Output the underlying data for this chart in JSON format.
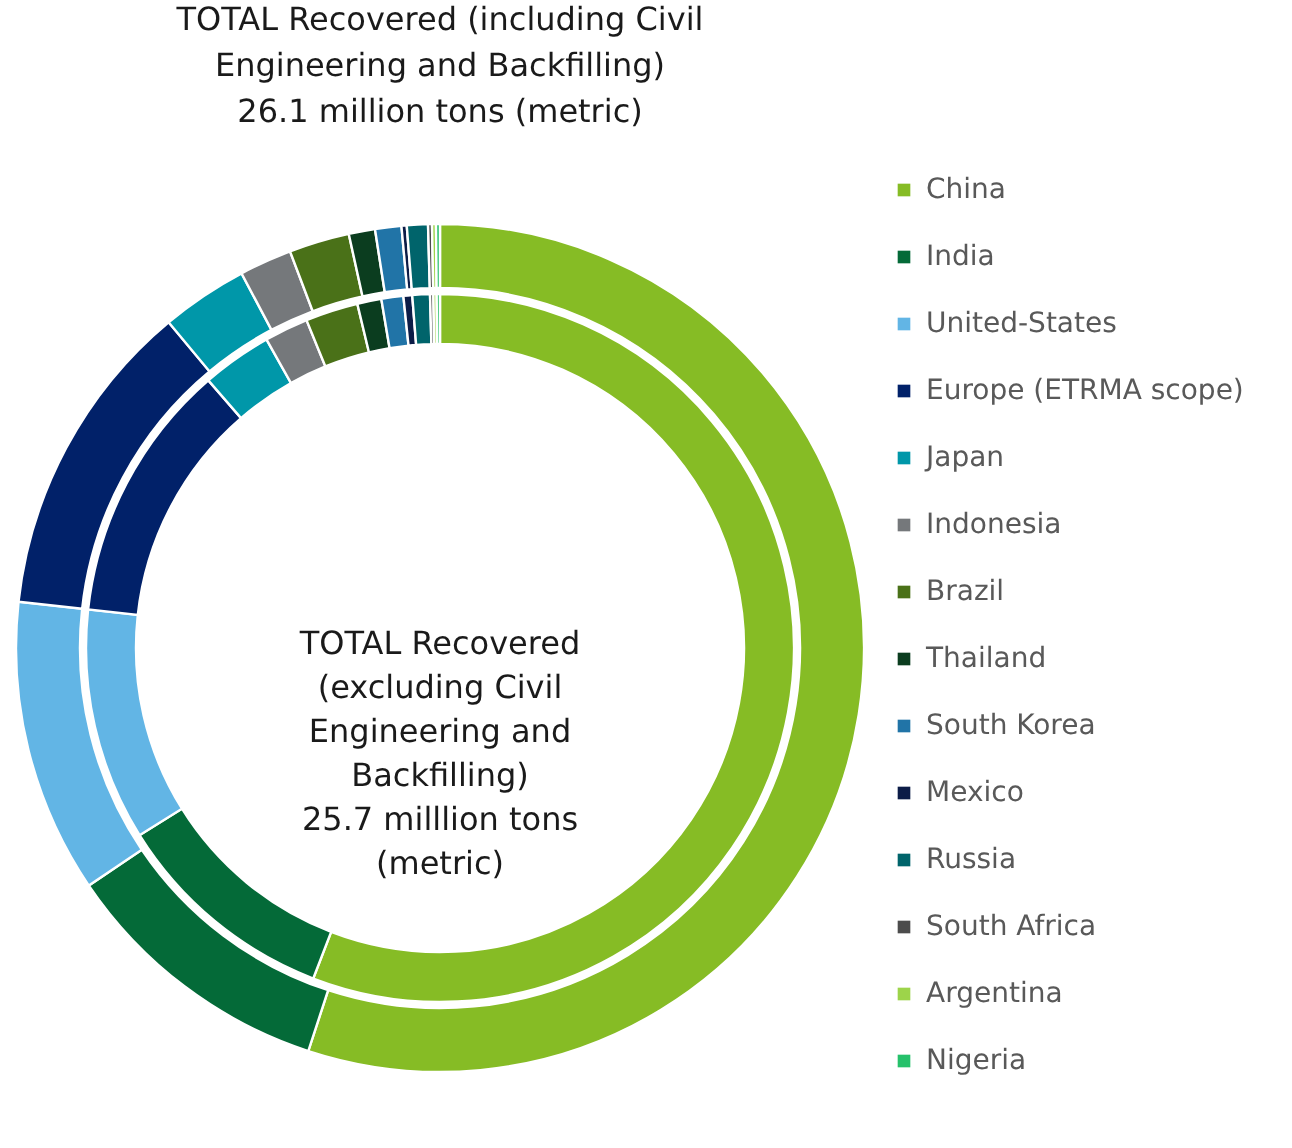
{
  "chart_data": {
    "type": "donut",
    "title": "TOTAL Recovered (including Civil Engineering and Backfilling) 26.1 million tons (metric)",
    "categories": [
      "China",
      "India",
      "United-States",
      "Europe (ETRMA scope)",
      "Japan",
      "Indonesia",
      "Brazil",
      "Thailand",
      "South Korea",
      "Mexico",
      "Russia",
      "South Africa",
      "Argentina",
      "Nigeria"
    ],
    "colors": [
      "#86bc25",
      "#046a38",
      "#62b5e5",
      "#012169",
      "#0097a9",
      "#75787b",
      "#4a7118",
      "#0b3d1f",
      "#2174a7",
      "#0c1c47",
      "#00646b",
      "#4c4c4c",
      "#9dd44a",
      "#26c16b"
    ],
    "series": [
      {
        "values": [
          55.0,
          10.5,
          11.2,
          12.2,
          3.3,
          2.0,
          2.3,
          1.0,
          1.0,
          0.2,
          0.8,
          0.15,
          0.15,
          0.15
        ]
      },
      {
        "values": [
          55.8,
          10.3,
          10.6,
          11.9,
          3.2,
          2.0,
          2.4,
          1.1,
          1.0,
          0.4,
          0.8,
          0.15,
          0.15,
          0.15
        ]
      }
    ],
    "annotations": [
      "TOTAL Recovered (excluding Civil Engineering and Backfilling) 25.7 milllion tons (metric)"
    ],
    "legend": "right"
  }
}
